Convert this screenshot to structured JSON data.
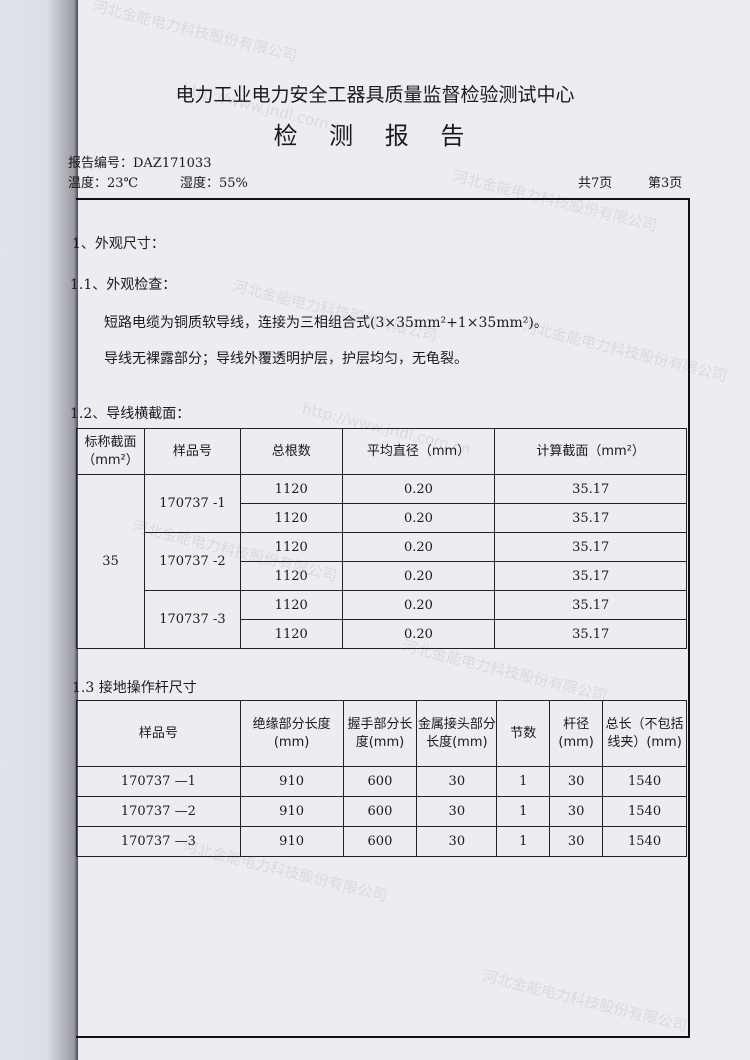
{
  "header": {
    "org": "电力工业电力安全工器具质量监督检验测试中心",
    "title": "检 测 报 告",
    "report_no": "报告编号：DAZ171033",
    "temp": "温度：23℃",
    "humidity": "湿度：55%",
    "total_pages": "共7页",
    "page": "第3页"
  },
  "sections": {
    "s1": "1、外观尺寸：",
    "s11": "1.1、外观检查：",
    "line1": "短路电缆为铜质软导线，连接为三相组合式(3×35mm²+1×35mm²)。",
    "line2": "导线无裸露部分；导线外覆透明护层，护层均匀，无龟裂。",
    "s12": "1.2、导线横截面：",
    "s13": "1.3  接地操作杆尺寸"
  },
  "table1": {
    "headers": [
      "标称截面（mm²）",
      "样品号",
      "总根数",
      "平均直径（mm）",
      "计算截面（mm²）"
    ],
    "nominal": "35",
    "samples": [
      {
        "id": "170737 -1",
        "rows": [
          [
            "1120",
            "0.20",
            "35.17"
          ],
          [
            "1120",
            "0.20",
            "35.17"
          ]
        ]
      },
      {
        "id": "170737 -2",
        "rows": [
          [
            "1120",
            "0.20",
            "35.17"
          ],
          [
            "1120",
            "0.20",
            "35.17"
          ]
        ]
      },
      {
        "id": "170737 -3",
        "rows": [
          [
            "1120",
            "0.20",
            "35.17"
          ],
          [
            "1120",
            "0.20",
            "35.17"
          ]
        ]
      }
    ]
  },
  "table2": {
    "headers": [
      "样品号",
      "绝缘部分长度(mm)",
      "握手部分长度(mm)",
      "金属接头部分长度(mm)",
      "节数",
      "杆径(mm)",
      "总长（不包括线夹）(mm)"
    ],
    "rows": [
      [
        "170737 —1",
        "910",
        "600",
        "30",
        "1",
        "30",
        "1540"
      ],
      [
        "170737 —2",
        "910",
        "600",
        "30",
        "1",
        "30",
        "1540"
      ],
      [
        "170737 —3",
        "910",
        "600",
        "30",
        "1",
        "30",
        "1540"
      ]
    ]
  },
  "watermark": [
    "河北金能电力科技股份有限公司",
    "http://www.jndl.com.cn"
  ]
}
